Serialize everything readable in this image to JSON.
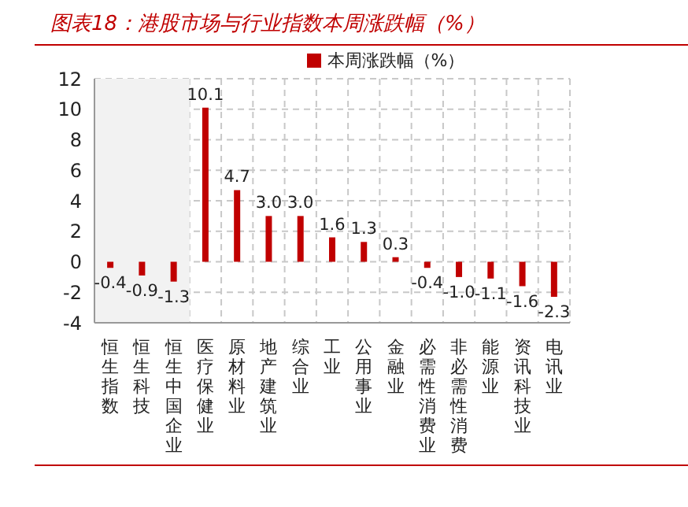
{
  "chart_data": {
    "type": "bar",
    "title": "图表18：港股市场与行业指数本周涨跌幅（%）",
    "categories": [
      "恒生指数",
      "恒生科技",
      "恒生中国企业",
      "医疗保健业",
      "原材料业",
      "地产建筑业",
      "综合业",
      "工业",
      "公用事业",
      "金融业",
      "必需性消费业",
      "非必需性消费",
      "能源业",
      "资讯科技业",
      "电讯业"
    ],
    "series": [
      {
        "name": "本周涨跌幅（%）",
        "color": "#c00000",
        "values": [
          -0.4,
          -0.9,
          -1.3,
          10.1,
          4.7,
          3.0,
          3.0,
          1.6,
          1.3,
          0.3,
          -0.4,
          -1.0,
          -1.1,
          -1.6,
          -2.3
        ],
        "value_labels": [
          "-0.4",
          "-0.9",
          "-1.3",
          "10.1",
          "4.7",
          "3.0",
          "3.0",
          "1.6",
          "1.3",
          "0.3",
          "-0.4",
          "-1.0",
          "-1.1",
          "-1.6",
          "-2.3"
        ]
      }
    ],
    "ylim": [
      -4,
      12
    ],
    "yticks": [
      -4,
      -2,
      0,
      2,
      4,
      6,
      8,
      10,
      12
    ],
    "bands": [
      {
        "axis": "x",
        "from": "恒生指数",
        "to": "恒生中国企业",
        "color": "#f2f2f2"
      }
    ],
    "grid": true,
    "legend": "top"
  }
}
